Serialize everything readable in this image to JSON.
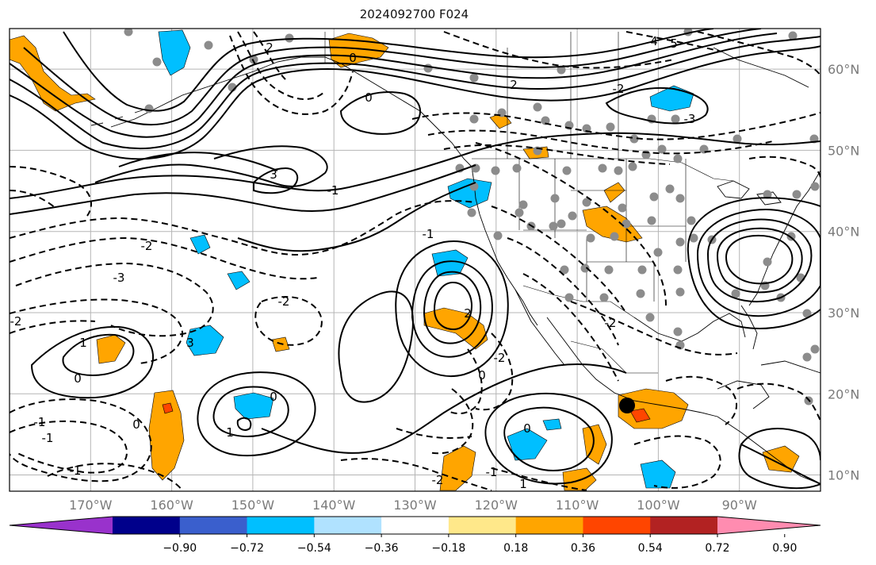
{
  "title": "2024092700 F024",
  "map": {
    "lon_ticks": [
      "170°W",
      "160°W",
      "150°W",
      "140°W",
      "130°W",
      "120°W",
      "110°W",
      "100°W",
      "90°W"
    ],
    "lat_ticks": [
      "60°N",
      "50°N",
      "40°N",
      "30°N",
      "20°N",
      "10°N"
    ],
    "extent": {
      "lon_min": -180,
      "lon_max": -80,
      "lat_min": 8,
      "lat_max": 65
    },
    "contour_labels": [
      "2",
      "3",
      "0",
      "-2",
      "-3",
      "-1",
      "1",
      "4",
      "5",
      "-2",
      "-1",
      "0",
      "1",
      "2",
      "3",
      "-2",
      "0",
      "-3",
      "2",
      "-2",
      "1",
      "0",
      "-1",
      "0",
      "-2",
      "0",
      "-1",
      "-2",
      "-1",
      "-2",
      "-1",
      "0"
    ],
    "marker_color": "#000000",
    "station_color": "#8c8c8c"
  },
  "colorbar": {
    "colors": [
      "#9932cc",
      "#00008b",
      "#3a5fcd",
      "#00bfff",
      "#b0e2ff",
      "#ffffff",
      "#ffe88a",
      "#ffa500",
      "#ff4500",
      "#b22222",
      "#ff8cb0"
    ],
    "tick_labels": [
      "−0.90",
      "−0.72",
      "−0.54",
      "−0.36",
      "−0.18",
      "0.18",
      "0.36",
      "0.54",
      "0.72",
      "0.90"
    ]
  }
}
